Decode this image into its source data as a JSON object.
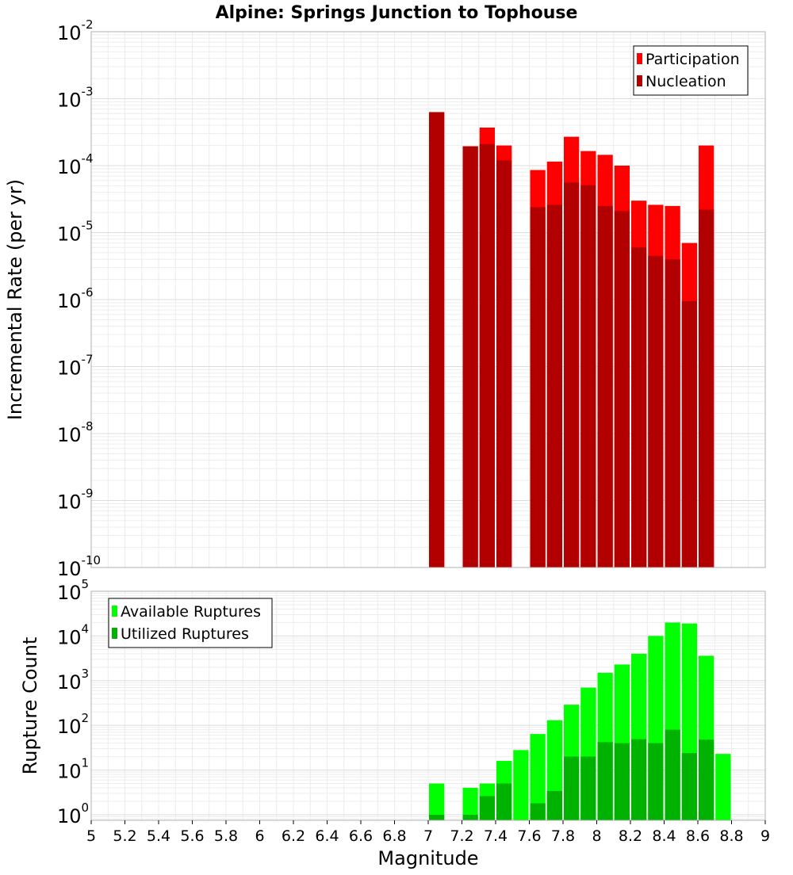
{
  "chart_data": [
    {
      "type": "bar",
      "title": "Alpine: Springs Junction to Tophouse",
      "xlabel": "",
      "ylabel": "Incremental Rate (per yr)",
      "xlim": [
        5,
        9
      ],
      "ylim": [
        1e-10,
        0.01
      ],
      "yscale": "log",
      "grid": true,
      "legend_position": "top-right",
      "y_tick_labels": [
        {
          "base": "10",
          "exp": "-10"
        },
        {
          "base": "10",
          "exp": "-9"
        },
        {
          "base": "10",
          "exp": "-8"
        },
        {
          "base": "10",
          "exp": "-7"
        },
        {
          "base": "10",
          "exp": "-6"
        },
        {
          "base": "10",
          "exp": "-5"
        },
        {
          "base": "10",
          "exp": "-4"
        },
        {
          "base": "10",
          "exp": "-3"
        },
        {
          "base": "10",
          "exp": "-2"
        }
      ],
      "categories": [
        7.05,
        7.25,
        7.35,
        7.45,
        7.65,
        7.75,
        7.85,
        7.95,
        8.05,
        8.15,
        8.25,
        8.35,
        8.45,
        8.55,
        8.65
      ],
      "bar_width": 0.1,
      "series": [
        {
          "name": "Participation",
          "color": "#ff0000",
          "values": [
            0.00063,
            0.000195,
            0.00037,
            0.0002,
            8.6e-05,
            0.000115,
            0.00027,
            0.000165,
            0.000145,
            0.0001,
            3e-05,
            2.6e-05,
            2.5e-05,
            7e-06,
            0.0002
          ]
        },
        {
          "name": "Nucleation",
          "color": "#b20000",
          "values": [
            0.00063,
            0.000195,
            0.00021,
            0.00012,
            2.4e-05,
            2.6e-05,
            5.6e-05,
            5.1e-05,
            2.5e-05,
            2.1e-05,
            6e-06,
            4.5e-06,
            4e-06,
            9.5e-07,
            2.2e-05
          ]
        }
      ]
    },
    {
      "type": "bar",
      "title": "",
      "xlabel": "Magnitude",
      "ylabel": "Rupture Count",
      "xlim": [
        5,
        9
      ],
      "ylim": [
        0.75,
        100000.0
      ],
      "yscale": "log",
      "grid": true,
      "legend_position": "top-left",
      "x_ticks": [
        "5",
        "5.2",
        "5.4",
        "5.6",
        "5.8",
        "6",
        "6.2",
        "6.4",
        "6.6",
        "6.8",
        "7",
        "7.2",
        "7.4",
        "7.6",
        "7.8",
        "8",
        "8.2",
        "8.4",
        "8.6",
        "8.8",
        "9"
      ],
      "y_tick_labels": [
        {
          "base": "10",
          "exp": "0"
        },
        {
          "base": "10",
          "exp": "1"
        },
        {
          "base": "10",
          "exp": "2"
        },
        {
          "base": "10",
          "exp": "3"
        },
        {
          "base": "10",
          "exp": "4"
        },
        {
          "base": "10",
          "exp": "5"
        }
      ],
      "categories": [
        7.05,
        7.25,
        7.35,
        7.45,
        7.55,
        7.65,
        7.75,
        7.85,
        7.95,
        8.05,
        8.15,
        8.25,
        8.35,
        8.45,
        8.55,
        8.65,
        8.75
      ],
      "bar_width": 0.1,
      "series": [
        {
          "name": "Available Ruptures",
          "color": "#00ff00",
          "values": [
            5,
            4,
            5,
            16,
            28,
            64,
            130,
            290,
            700,
            1500,
            2300,
            4000,
            10000,
            20000,
            19000,
            3600,
            23
          ]
        },
        {
          "name": "Utilized Ruptures",
          "color": "#00b200",
          "values": [
            1,
            1,
            2.6,
            5,
            0,
            1.8,
            3.4,
            20,
            20,
            42,
            40,
            49,
            40,
            80,
            24,
            48,
            0
          ]
        }
      ]
    }
  ]
}
